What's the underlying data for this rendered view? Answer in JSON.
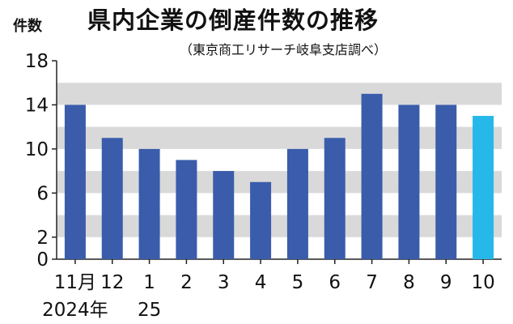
{
  "chart_data": {
    "type": "bar",
    "title": "県内企業の倒産件数の推移",
    "subtitle": "（東京商工リサーチ岐阜支店調べ）",
    "ylabel": "件数",
    "xlabel": "",
    "ylim": [
      0,
      18
    ],
    "yticks": [
      "0",
      "2",
      "6",
      "10",
      "14",
      "18"
    ],
    "grid": "shaded horizontal bands",
    "categories": [
      "11月",
      "12",
      "1",
      "2",
      "3",
      "4",
      "5",
      "6",
      "7",
      "8",
      "9",
      "10"
    ],
    "year_labels": [
      {
        "category": "11月",
        "text": "2024年"
      },
      {
        "category": "1",
        "text": "25"
      }
    ],
    "values": [
      14,
      11,
      10,
      9,
      8,
      7,
      10,
      11,
      15,
      14,
      14,
      13
    ],
    "highlight_index": 11,
    "colors": {
      "bar": "#3a5cab",
      "bar_highlight": "#27b8ea",
      "band": "#d9d9d9",
      "axis": "#222222"
    }
  }
}
